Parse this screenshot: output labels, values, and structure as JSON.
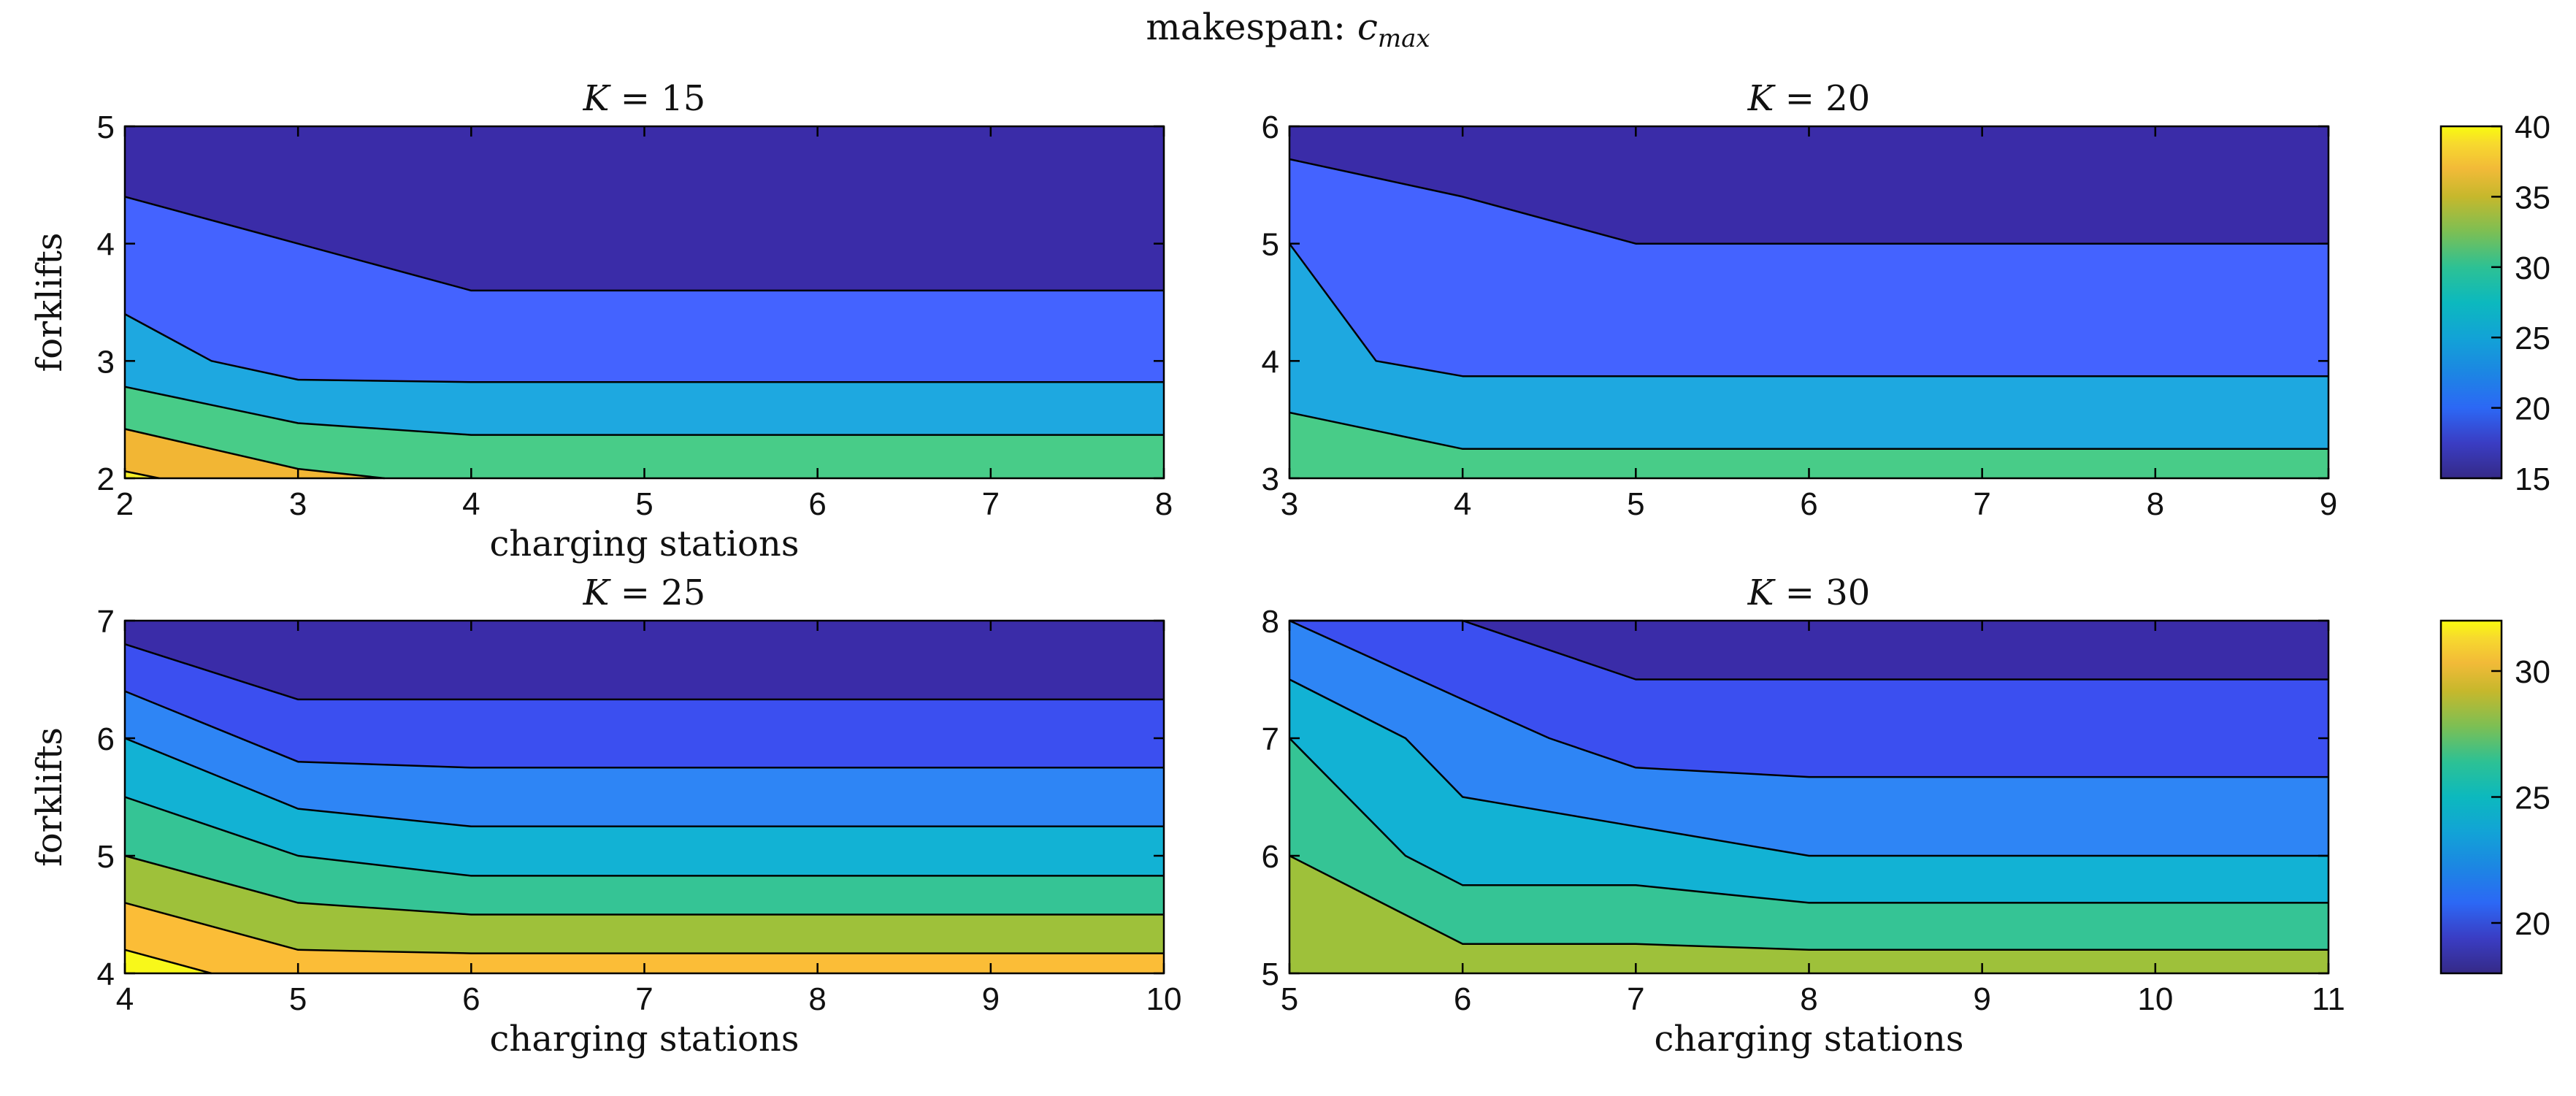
{
  "figure": {
    "suptitle_prefix": "makespan: ",
    "suptitle_var": "c",
    "suptitle_sub": "max"
  },
  "chart_data": [
    {
      "type": "contour",
      "title": "K = 15",
      "xlabel": "charging stations",
      "ylabel": "forklifts",
      "xlim": [
        2,
        8
      ],
      "ylim": [
        2,
        5
      ],
      "xticks": [
        2,
        3,
        4,
        5,
        6,
        7,
        8
      ],
      "yticks": [
        2,
        3,
        4,
        5
      ],
      "bands": [
        {
          "level_range": [
            15,
            20
          ],
          "color": "#3a2ca8",
          "upper": [
            [
              2,
              5
            ],
            [
              8,
              5
            ]
          ]
        },
        {
          "level_range": [
            20,
            25
          ],
          "color": "#4463ff",
          "upper": [
            [
              2,
              4.4
            ],
            [
              3,
              4.0
            ],
            [
              4,
              3.6
            ],
            [
              8,
              3.6
            ]
          ]
        },
        {
          "level_range": [
            25,
            30
          ],
          "color": "#1ea8e0",
          "upper": [
            [
              2,
              3.4
            ],
            [
              2.5,
              3.0
            ],
            [
              3,
              2.84
            ],
            [
              4,
              2.82
            ],
            [
              8,
              2.82
            ]
          ]
        },
        {
          "level_range": [
            30,
            35
          ],
          "color": "#48cc88",
          "upper": [
            [
              2,
              2.78
            ],
            [
              3,
              2.47
            ],
            [
              4,
              2.37
            ],
            [
              8,
              2.37
            ]
          ]
        },
        {
          "level_range": [
            35,
            40
          ],
          "color": "#f2b634",
          "upper": [
            [
              2,
              2.42
            ],
            [
              3,
              2.08
            ],
            [
              3.5,
              2.0
            ]
          ]
        },
        {
          "level_range": [
            40,
            45
          ],
          "color": "#f7f02a",
          "upper": [
            [
              2,
              2.06
            ],
            [
              2.2,
              2.0
            ]
          ]
        }
      ],
      "colorbar": {
        "ticks": [
          15,
          20,
          25,
          30,
          35,
          40
        ],
        "range": [
          15,
          40
        ]
      }
    },
    {
      "type": "contour",
      "title": "K = 20",
      "xlim": [
        3,
        9
      ],
      "ylim": [
        3,
        6
      ],
      "xticks": [
        3,
        4,
        5,
        6,
        7,
        8,
        9
      ],
      "yticks": [
        3,
        4,
        5,
        6
      ],
      "bands": [
        {
          "level_range": [
            15,
            20
          ],
          "color": "#3a2ca8",
          "upper": [
            [
              3,
              6
            ],
            [
              9,
              6
            ]
          ]
        },
        {
          "level_range": [
            20,
            25
          ],
          "color": "#4463ff",
          "upper": [
            [
              3,
              5.72
            ],
            [
              4,
              5.4
            ],
            [
              5,
              5.0
            ],
            [
              9,
              5.0
            ]
          ]
        },
        {
          "level_range": [
            25,
            30
          ],
          "color": "#1ea8e0",
          "upper": [
            [
              3,
              5.0
            ],
            [
              3.5,
              4.0
            ],
            [
              4,
              3.87
            ],
            [
              9,
              3.87
            ]
          ]
        },
        {
          "level_range": [
            30,
            35
          ],
          "color": "#48cc88",
          "upper": [
            [
              3,
              3.56
            ],
            [
              4,
              3.25
            ],
            [
              9,
              3.25
            ]
          ]
        }
      ]
    },
    {
      "type": "contour",
      "title": "K = 25",
      "xlabel": "charging stations",
      "ylabel": "forklifts",
      "xlim": [
        4,
        10
      ],
      "ylim": [
        4,
        7
      ],
      "xticks": [
        4,
        5,
        6,
        7,
        8,
        9,
        10
      ],
      "yticks": [
        4,
        5,
        6,
        7
      ],
      "bands": [
        {
          "level_range": [
            18,
            20
          ],
          "color": "#3a2ca8",
          "upper": [
            [
              4,
              7
            ],
            [
              10,
              7
            ]
          ]
        },
        {
          "level_range": [
            20,
            22
          ],
          "color": "#3b4ff0",
          "upper": [
            [
              4,
              6.8
            ],
            [
              5,
              6.33
            ],
            [
              10,
              6.33
            ]
          ]
        },
        {
          "level_range": [
            22,
            24
          ],
          "color": "#2e85f5",
          "upper": [
            [
              4,
              6.4
            ],
            [
              5,
              5.8
            ],
            [
              6,
              5.75
            ],
            [
              10,
              5.75
            ]
          ]
        },
        {
          "level_range": [
            24,
            26
          ],
          "color": "#12b2d4",
          "upper": [
            [
              4,
              6.0
            ],
            [
              5,
              5.4
            ],
            [
              6,
              5.25
            ],
            [
              10,
              5.25
            ]
          ]
        },
        {
          "level_range": [
            26,
            28
          ],
          "color": "#35c495",
          "upper": [
            [
              4,
              5.5
            ],
            [
              5,
              5.0
            ],
            [
              6,
              4.83
            ],
            [
              10,
              4.83
            ]
          ]
        },
        {
          "level_range": [
            28,
            30
          ],
          "color": "#9ec13a",
          "upper": [
            [
              4,
              5.0
            ],
            [
              5,
              4.6
            ],
            [
              6,
              4.5
            ],
            [
              10,
              4.5
            ]
          ]
        },
        {
          "level_range": [
            30,
            32
          ],
          "color": "#fbbd37",
          "upper": [
            [
              4,
              4.6
            ],
            [
              5,
              4.2
            ],
            [
              6,
              4.17
            ],
            [
              10,
              4.17
            ]
          ]
        },
        {
          "level_range": [
            32,
            34
          ],
          "color": "#f8f81a",
          "upper": [
            [
              4,
              4.2
            ],
            [
              4.5,
              4.0
            ]
          ]
        }
      ],
      "colorbar": {
        "ticks": [
          20,
          25,
          30
        ],
        "range": [
          18,
          32
        ]
      }
    },
    {
      "type": "contour",
      "title": "K = 30",
      "xlabel": "charging stations",
      "xlim": [
        5,
        11
      ],
      "ylim": [
        5,
        8
      ],
      "xticks": [
        5,
        6,
        7,
        8,
        9,
        10,
        11
      ],
      "yticks": [
        5,
        6,
        7,
        8
      ],
      "bands": [
        {
          "level_range": [
            18,
            20
          ],
          "color": "#3a2ca8",
          "upper": [
            [
              5,
              8
            ],
            [
              11,
              8
            ]
          ]
        },
        {
          "level_range": [
            20,
            22
          ],
          "color": "#3b4ff0",
          "upper": [
            [
              5,
              8.0
            ],
            [
              6,
              8.0
            ],
            [
              7,
              7.5
            ],
            [
              11,
              7.5
            ]
          ]
        },
        {
          "level_range": [
            22,
            24
          ],
          "color": "#2e85f5",
          "upper": [
            [
              5,
              8.0
            ],
            [
              6,
              7.33
            ],
            [
              6.5,
              7.0
            ],
            [
              7,
              6.75
            ],
            [
              8,
              6.67
            ],
            [
              11,
              6.67
            ]
          ]
        },
        {
          "level_range": [
            24,
            26
          ],
          "color": "#12b2d4",
          "upper": [
            [
              5,
              7.5
            ],
            [
              5.67,
              7.0
            ],
            [
              6,
              6.5
            ],
            [
              7,
              6.25
            ],
            [
              8,
              6.0
            ],
            [
              11,
              6.0
            ]
          ]
        },
        {
          "level_range": [
            26,
            28
          ],
          "color": "#35c495",
          "upper": [
            [
              5,
              7.0
            ],
            [
              5.67,
              6.0
            ],
            [
              6,
              5.75
            ],
            [
              7,
              5.75
            ],
            [
              8,
              5.6
            ],
            [
              11,
              5.6
            ]
          ]
        },
        {
          "level_range": [
            28,
            30
          ],
          "color": "#9ec13a",
          "upper": [
            [
              5,
              6.0
            ],
            [
              6,
              5.25
            ],
            [
              7,
              5.25
            ],
            [
              8,
              5.2
            ],
            [
              11,
              5.2
            ]
          ]
        }
      ]
    }
  ]
}
